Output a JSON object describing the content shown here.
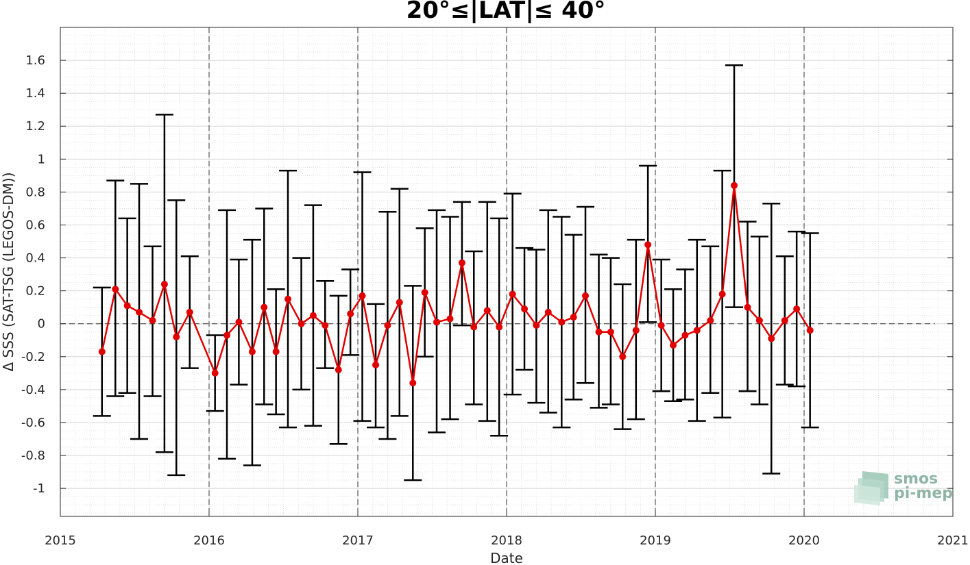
{
  "chart_data": {
    "type": "line",
    "title": "20°≤|LAT|≤ 40°",
    "xlabel": "Date",
    "ylabel": "Δ SSS (SAT-TSG (LEGOS-DM))",
    "xlim": [
      2015,
      2021
    ],
    "ylim": [
      -1.17,
      1.8
    ],
    "x_ticks": [
      "2015",
      "2016",
      "2017",
      "2018",
      "2019",
      "2020",
      "2021"
    ],
    "y_ticks": [
      "1.6",
      "1.4",
      "1.2",
      "1",
      "0.8",
      "0.6",
      "0.4",
      "0.2",
      "0",
      "-0.2",
      "-0.4",
      "-0.6",
      "-0.8",
      "-1"
    ],
    "y_tick_values": [
      1.6,
      1.4,
      1.2,
      1,
      0.8,
      0.6,
      0.4,
      0.2,
      0,
      -0.2,
      -0.4,
      -0.6,
      -0.8,
      -1
    ],
    "grid": true,
    "year_lines": [
      2016,
      2017,
      2018,
      2019,
      2020
    ],
    "zero_line": 0,
    "series": [
      {
        "color": "#e00000",
        "error_bar_color": "#000000",
        "points": [
          {
            "x": 2015.28,
            "y": -0.17,
            "low": -0.56,
            "high": 0.22
          },
          {
            "x": 2015.37,
            "y": 0.21,
            "low": -0.44,
            "high": 0.87
          },
          {
            "x": 2015.45,
            "y": 0.11,
            "low": -0.42,
            "high": 0.64
          },
          {
            "x": 2015.53,
            "y": 0.07,
            "low": -0.7,
            "high": 0.85
          },
          {
            "x": 2015.62,
            "y": 0.02,
            "low": -0.44,
            "high": 0.47
          },
          {
            "x": 2015.7,
            "y": 0.24,
            "low": -0.78,
            "high": 1.27
          },
          {
            "x": 2015.78,
            "y": -0.08,
            "low": -0.92,
            "high": 0.75
          },
          {
            "x": 2015.87,
            "y": 0.07,
            "low": -0.27,
            "high": 0.41
          },
          {
            "x": 2016.04,
            "y": -0.3,
            "low": -0.53,
            "high": -0.07
          },
          {
            "x": 2016.12,
            "y": -0.07,
            "low": -0.82,
            "high": 0.69
          },
          {
            "x": 2016.2,
            "y": 0.01,
            "low": -0.37,
            "high": 0.39
          },
          {
            "x": 2016.29,
            "y": -0.17,
            "low": -0.86,
            "high": 0.51
          },
          {
            "x": 2016.37,
            "y": 0.1,
            "low": -0.49,
            "high": 0.7
          },
          {
            "x": 2016.45,
            "y": -0.17,
            "low": -0.55,
            "high": 0.21
          },
          {
            "x": 2016.53,
            "y": 0.15,
            "low": -0.63,
            "high": 0.93
          },
          {
            "x": 2016.62,
            "y": 0.0,
            "low": -0.4,
            "high": 0.4
          },
          {
            "x": 2016.7,
            "y": 0.05,
            "low": -0.62,
            "high": 0.72
          },
          {
            "x": 2016.78,
            "y": -0.01,
            "low": -0.27,
            "high": 0.26
          },
          {
            "x": 2016.87,
            "y": -0.28,
            "low": -0.73,
            "high": 0.17
          },
          {
            "x": 2016.95,
            "y": 0.06,
            "low": -0.19,
            "high": 0.33
          },
          {
            "x": 2017.03,
            "y": 0.17,
            "low": -0.59,
            "high": 0.92
          },
          {
            "x": 2017.12,
            "y": -0.25,
            "low": -0.63,
            "high": 0.12
          },
          {
            "x": 2017.2,
            "y": -0.01,
            "low": -0.7,
            "high": 0.68
          },
          {
            "x": 2017.28,
            "y": 0.13,
            "low": -0.56,
            "high": 0.82
          },
          {
            "x": 2017.37,
            "y": -0.36,
            "low": -0.95,
            "high": 0.23
          },
          {
            "x": 2017.45,
            "y": 0.19,
            "low": -0.2,
            "high": 0.58
          },
          {
            "x": 2017.53,
            "y": 0.01,
            "low": -0.66,
            "high": 0.69
          },
          {
            "x": 2017.62,
            "y": 0.03,
            "low": -0.58,
            "high": 0.65
          },
          {
            "x": 2017.7,
            "y": 0.37,
            "low": -0.01,
            "high": 0.74
          },
          {
            "x": 2017.78,
            "y": -0.02,
            "low": -0.49,
            "high": 0.44
          },
          {
            "x": 2017.87,
            "y": 0.08,
            "low": -0.59,
            "high": 0.74
          },
          {
            "x": 2017.95,
            "y": -0.02,
            "low": -0.68,
            "high": 0.64
          },
          {
            "x": 2018.04,
            "y": 0.18,
            "low": -0.43,
            "high": 0.79
          },
          {
            "x": 2018.12,
            "y": 0.09,
            "low": -0.28,
            "high": 0.46
          },
          {
            "x": 2018.2,
            "y": -0.01,
            "low": -0.48,
            "high": 0.45
          },
          {
            "x": 2018.28,
            "y": 0.07,
            "low": -0.54,
            "high": 0.69
          },
          {
            "x": 2018.37,
            "y": 0.01,
            "low": -0.63,
            "high": 0.65
          },
          {
            "x": 2018.45,
            "y": 0.04,
            "low": -0.46,
            "high": 0.54
          },
          {
            "x": 2018.53,
            "y": 0.17,
            "low": -0.36,
            "high": 0.71
          },
          {
            "x": 2018.62,
            "y": -0.05,
            "low": -0.51,
            "high": 0.42
          },
          {
            "x": 2018.7,
            "y": -0.05,
            "low": -0.49,
            "high": 0.4
          },
          {
            "x": 2018.78,
            "y": -0.2,
            "low": -0.64,
            "high": 0.24
          },
          {
            "x": 2018.87,
            "y": -0.04,
            "low": -0.58,
            "high": 0.51
          },
          {
            "x": 2018.95,
            "y": 0.48,
            "low": 0.01,
            "high": 0.96
          },
          {
            "x": 2019.04,
            "y": -0.01,
            "low": -0.41,
            "high": 0.39
          },
          {
            "x": 2019.12,
            "y": -0.13,
            "low": -0.47,
            "high": 0.21
          },
          {
            "x": 2019.2,
            "y": -0.07,
            "low": -0.46,
            "high": 0.33
          },
          {
            "x": 2019.28,
            "y": -0.04,
            "low": -0.59,
            "high": 0.51
          },
          {
            "x": 2019.37,
            "y": 0.02,
            "low": -0.42,
            "high": 0.47
          },
          {
            "x": 2019.45,
            "y": 0.18,
            "low": -0.57,
            "high": 0.93
          },
          {
            "x": 2019.53,
            "y": 0.84,
            "low": 0.1,
            "high": 1.57
          },
          {
            "x": 2019.62,
            "y": 0.1,
            "low": -0.41,
            "high": 0.62
          },
          {
            "x": 2019.7,
            "y": 0.02,
            "low": -0.49,
            "high": 0.53
          },
          {
            "x": 2019.78,
            "y": -0.09,
            "low": -0.91,
            "high": 0.73
          },
          {
            "x": 2019.87,
            "y": 0.02,
            "low": -0.37,
            "high": 0.41
          },
          {
            "x": 2019.95,
            "y": 0.09,
            "low": -0.38,
            "high": 0.56
          },
          {
            "x": 2020.04,
            "y": -0.04,
            "low": -0.63,
            "high": 0.55
          }
        ]
      }
    ]
  },
  "logo": {
    "line1": "smos",
    "line2": "pi-mep"
  }
}
